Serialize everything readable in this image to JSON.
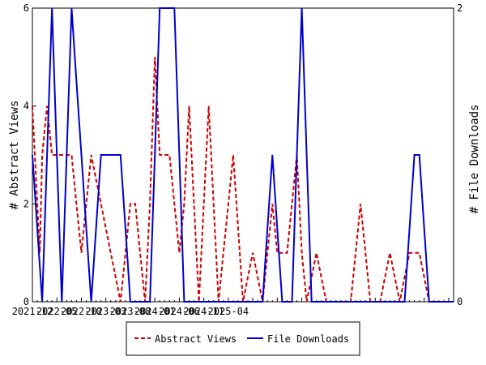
{
  "chart_data": {
    "type": "line",
    "x_tick_labels": [
      "2021-12",
      "2022-05",
      "2022-10",
      "2023-03",
      "2023-08",
      "2024-01",
      "2024-06",
      "2024-11",
      "2025-04"
    ],
    "y_left": {
      "label": "# Abstract Views",
      "ylim": [
        0,
        6
      ],
      "ticks": [
        "0",
        "2",
        "4",
        "6"
      ]
    },
    "y_right": {
      "label": "# File Downloads",
      "ylim": [
        0,
        2
      ],
      "ticks": [
        "0",
        "2"
      ]
    },
    "grid": false,
    "legend_placement": "bottom-center",
    "series": [
      {
        "name": "Abstract Views",
        "axis": "left",
        "color": "#cc0000",
        "style": "dashed",
        "points": [
          [
            0,
            4
          ],
          [
            1,
            2
          ],
          [
            1.5,
            1
          ],
          [
            2,
            3
          ],
          [
            3,
            4
          ],
          [
            4,
            3
          ],
          [
            5,
            3
          ],
          [
            6,
            3
          ],
          [
            7,
            3
          ],
          [
            8,
            3
          ],
          [
            9,
            2
          ],
          [
            10,
            1
          ],
          [
            11,
            2
          ],
          [
            12,
            3
          ],
          [
            13,
            2.5
          ],
          [
            14,
            2
          ],
          [
            15,
            1.5
          ],
          [
            16,
            1
          ],
          [
            17,
            0.5
          ],
          [
            18,
            0
          ],
          [
            19,
            1
          ],
          [
            20,
            2
          ],
          [
            21,
            2
          ],
          [
            22,
            1
          ],
          [
            23,
            0
          ],
          [
            24,
            2
          ],
          [
            25,
            5
          ],
          [
            26,
            3
          ],
          [
            27,
            3
          ],
          [
            28,
            3
          ],
          [
            29,
            2
          ],
          [
            30,
            1
          ],
          [
            31,
            2
          ],
          [
            32,
            4
          ],
          [
            33,
            2
          ],
          [
            34,
            0
          ],
          [
            35,
            2
          ],
          [
            36,
            4
          ],
          [
            37,
            2
          ],
          [
            38,
            0
          ],
          [
            39,
            1
          ],
          [
            40,
            2
          ],
          [
            41,
            3
          ],
          [
            42,
            1.5
          ],
          [
            43,
            0
          ],
          [
            44,
            0.5
          ],
          [
            45,
            1
          ],
          [
            46,
            0.5
          ],
          [
            47,
            0
          ],
          [
            48,
            1
          ],
          [
            49,
            2
          ],
          [
            50,
            1
          ],
          [
            51,
            1
          ],
          [
            52,
            1
          ],
          [
            53,
            2
          ],
          [
            54,
            3
          ],
          [
            55,
            1
          ],
          [
            56,
            0
          ],
          [
            57,
            0.5
          ],
          [
            58,
            1
          ],
          [
            59,
            0.5
          ],
          [
            60,
            0
          ],
          [
            61,
            0
          ],
          [
            62,
            0
          ],
          [
            63,
            0
          ],
          [
            64,
            0
          ],
          [
            65,
            0
          ],
          [
            66,
            1
          ],
          [
            67,
            2
          ],
          [
            68,
            1
          ],
          [
            69,
            0
          ],
          [
            70,
            0
          ],
          [
            71,
            0
          ],
          [
            72,
            0.5
          ],
          [
            73,
            1
          ],
          [
            74,
            0.5
          ],
          [
            75,
            0
          ],
          [
            76,
            0.5
          ],
          [
            77,
            1
          ],
          [
            78,
            1
          ],
          [
            79,
            1
          ],
          [
            80,
            0.5
          ],
          [
            81,
            0
          ],
          [
            82,
            0
          ],
          [
            83,
            0
          ],
          [
            84,
            0
          ],
          [
            85,
            0
          ],
          [
            86,
            0
          ]
        ]
      },
      {
        "name": "File Downloads",
        "axis": "right",
        "color": "#0000cc",
        "style": "solid",
        "points": [
          [
            0,
            1
          ],
          [
            1,
            0.5
          ],
          [
            2,
            0
          ],
          [
            3,
            1
          ],
          [
            4,
            2
          ],
          [
            5,
            1
          ],
          [
            6,
            0
          ],
          [
            7,
            1
          ],
          [
            8,
            2
          ],
          [
            9,
            1.5
          ],
          [
            10,
            1
          ],
          [
            11,
            0.5
          ],
          [
            12,
            0
          ],
          [
            13,
            0.5
          ],
          [
            14,
            1
          ],
          [
            15,
            1
          ],
          [
            16,
            1
          ],
          [
            17,
            1
          ],
          [
            18,
            1
          ],
          [
            19,
            0.5
          ],
          [
            20,
            0
          ],
          [
            21,
            0
          ],
          [
            22,
            0
          ],
          [
            23,
            0
          ],
          [
            24,
            0
          ],
          [
            25,
            1
          ],
          [
            26,
            2
          ],
          [
            27,
            2
          ],
          [
            28,
            2
          ],
          [
            29,
            2
          ],
          [
            30,
            1
          ],
          [
            31,
            0
          ],
          [
            32,
            0
          ],
          [
            33,
            0
          ],
          [
            34,
            0
          ],
          [
            35,
            0
          ],
          [
            36,
            0
          ],
          [
            37,
            0
          ],
          [
            38,
            0
          ],
          [
            39,
            0
          ],
          [
            40,
            0
          ],
          [
            41,
            0
          ],
          [
            42,
            0
          ],
          [
            43,
            0
          ],
          [
            44,
            0
          ],
          [
            45,
            0
          ],
          [
            46,
            0
          ],
          [
            47,
            0
          ],
          [
            48,
            0.5
          ],
          [
            49,
            1
          ],
          [
            50,
            0.5
          ],
          [
            51,
            0
          ],
          [
            52,
            0
          ],
          [
            53,
            0
          ],
          [
            54,
            1
          ],
          [
            55,
            2
          ],
          [
            56,
            1
          ],
          [
            57,
            0
          ],
          [
            58,
            0
          ],
          [
            59,
            0
          ],
          [
            60,
            0
          ],
          [
            61,
            0
          ],
          [
            62,
            0
          ],
          [
            63,
            0
          ],
          [
            64,
            0
          ],
          [
            65,
            0
          ],
          [
            66,
            0
          ],
          [
            67,
            0
          ],
          [
            68,
            0
          ],
          [
            69,
            0
          ],
          [
            70,
            0
          ],
          [
            71,
            0
          ],
          [
            72,
            0
          ],
          [
            73,
            0
          ],
          [
            74,
            0
          ],
          [
            75,
            0
          ],
          [
            76,
            0
          ],
          [
            77,
            0.5
          ],
          [
            78,
            1
          ],
          [
            79,
            1
          ],
          [
            80,
            0.5
          ],
          [
            81,
            0
          ],
          [
            82,
            0
          ],
          [
            83,
            0
          ],
          [
            84,
            0
          ],
          [
            85,
            0
          ],
          [
            86,
            0
          ]
        ]
      }
    ]
  }
}
